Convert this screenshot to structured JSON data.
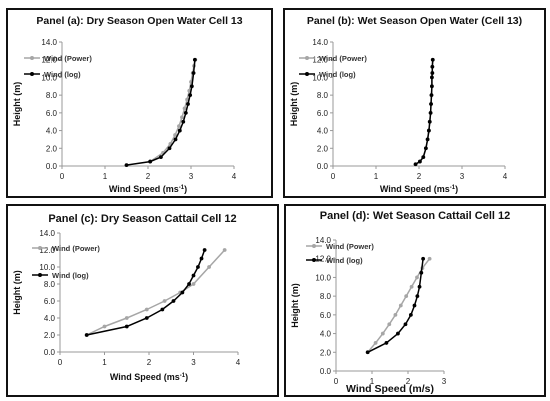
{
  "chart_data": [
    {
      "type": "line",
      "title": "Panel (a): Dry Season Open Water Cell 13",
      "xlabel": "Wind Speed (ms",
      "xlabel_sup": "-1",
      "xlabel_end": ")",
      "ylabel": "Height (m)",
      "xlim": [
        0,
        4
      ],
      "ylim": [
        0,
        14
      ],
      "x_ticks": [
        "0",
        "1",
        "2",
        "3",
        "4"
      ],
      "y_ticks": [
        "0.0",
        "2.0",
        "4.0",
        "6.0",
        "8.0",
        "10.0",
        "12.0",
        "14.0"
      ],
      "grid": false,
      "legend": "top-left",
      "series": [
        {
          "name": "Wind (Power)",
          "color": "#a6a6a6",
          "x": [
            2.05,
            2.35,
            2.52,
            2.63,
            2.72,
            2.79,
            2.85,
            2.91,
            2.96,
            3.0,
            3.04,
            3.07,
            3.1
          ],
          "y": [
            0.5,
            1.5,
            2.5,
            3.5,
            4.5,
            5.5,
            6.5,
            7.5,
            8.5,
            9.5,
            10.5,
            11.3,
            12.0
          ]
        },
        {
          "name": "Wind (log)",
          "color": "#000000",
          "x": [
            1.5,
            2.05,
            2.3,
            2.5,
            2.64,
            2.74,
            2.82,
            2.88,
            2.93,
            2.98,
            3.02,
            3.06,
            3.09
          ],
          "y": [
            0.1,
            0.5,
            1.0,
            2.0,
            3.0,
            4.0,
            5.0,
            6.0,
            7.0,
            8.0,
            9.0,
            10.5,
            12.0
          ]
        }
      ]
    },
    {
      "type": "line",
      "title": "Panel (b): Wet Season Open Water (Cell 13)",
      "xlabel": "Wind Speed (ms",
      "xlabel_sup": "-1",
      "xlabel_end": ")",
      "ylabel": "Height (m)",
      "xlim": [
        0,
        4
      ],
      "ylim": [
        0,
        14
      ],
      "x_ticks": [
        "0",
        "1",
        "2",
        "3",
        "4"
      ],
      "y_ticks": [
        "0.0",
        "2.0",
        "4.0",
        "6.0",
        "8.0",
        "10.0",
        "12.0",
        "14.0"
      ],
      "grid": false,
      "legend": "top-left",
      "series": [
        {
          "name": "Wind (Power)",
          "color": "#a6a6a6",
          "x": [
            1.92,
            2.02,
            2.1,
            2.16,
            2.2,
            2.23,
            2.25,
            2.27,
            2.28,
            2.29,
            2.3,
            2.3,
            2.31,
            2.31,
            2.32
          ],
          "y": [
            0.2,
            0.5,
            1.0,
            2.0,
            3.0,
            4.0,
            5.0,
            6.0,
            7.0,
            8.0,
            9.0,
            10.0,
            10.5,
            11.2,
            12.0
          ]
        },
        {
          "name": "Wind (log)",
          "color": "#000000",
          "x": [
            1.92,
            2.02,
            2.1,
            2.16,
            2.2,
            2.23,
            2.25,
            2.27,
            2.28,
            2.29,
            2.3,
            2.3,
            2.31,
            2.31,
            2.32
          ],
          "y": [
            0.2,
            0.5,
            1.0,
            2.0,
            3.0,
            4.0,
            5.0,
            6.0,
            7.0,
            8.0,
            9.0,
            10.0,
            10.5,
            11.2,
            12.0
          ]
        }
      ]
    },
    {
      "type": "line",
      "title": "Panel (c): Dry Season Cattail Cell 12",
      "xlabel": "Wind Speed (ms",
      "xlabel_sup": "-1",
      "xlabel_end": ")",
      "ylabel": "Height (m)",
      "xlim": [
        0,
        4
      ],
      "ylim": [
        0,
        14
      ],
      "x_ticks": [
        "0",
        "1",
        "2",
        "3",
        "4"
      ],
      "y_ticks": [
        "0.0",
        "2.0",
        "4.0",
        "6.0",
        "8.0",
        "10.0",
        "12.0",
        "14.0"
      ],
      "grid": false,
      "legend": "top-left",
      "series": [
        {
          "name": "Wind (Power)",
          "color": "#a6a6a6",
          "x": [
            0.6,
            1.0,
            1.5,
            1.95,
            2.35,
            2.7,
            3.0,
            3.35,
            3.7
          ],
          "y": [
            2.0,
            3.0,
            4.0,
            5.0,
            6.0,
            7.0,
            8.0,
            10.0,
            12.0
          ]
        },
        {
          "name": "Wind (log)",
          "color": "#000000",
          "x": [
            0.6,
            1.5,
            1.95,
            2.3,
            2.55,
            2.75,
            2.9,
            3.0,
            3.1,
            3.18,
            3.25
          ],
          "y": [
            2.0,
            3.0,
            4.0,
            5.0,
            6.0,
            7.0,
            8.0,
            9.0,
            10.0,
            11.0,
            12.0
          ]
        }
      ]
    },
    {
      "type": "line",
      "title": "Panel (d): Wet Season Cattail Cell 12",
      "xlabel": "Wind Speed (m/s)",
      "xlabel_sup": "",
      "xlabel_end": "",
      "ylabel": "Height (m)",
      "xlim": [
        0,
        3
      ],
      "ylim": [
        0,
        14
      ],
      "x_ticks": [
        "0",
        "1",
        "2",
        "3"
      ],
      "y_ticks": [
        "0.0",
        "2.0",
        "4.0",
        "6.0",
        "8.0",
        "10.0",
        "12.0",
        "14.0"
      ],
      "grid": false,
      "legend": "top-left",
      "series": [
        {
          "name": "Wind (Power)",
          "color": "#a6a6a6",
          "x": [
            0.88,
            1.1,
            1.3,
            1.48,
            1.65,
            1.8,
            1.95,
            2.1,
            2.25,
            2.4,
            2.6
          ],
          "y": [
            2.0,
            3.0,
            4.0,
            5.0,
            6.0,
            7.0,
            8.0,
            9.0,
            10.0,
            11.0,
            12.0
          ]
        },
        {
          "name": "Wind (log)",
          "color": "#000000",
          "x": [
            0.88,
            1.4,
            1.72,
            1.93,
            2.08,
            2.18,
            2.26,
            2.32,
            2.37,
            2.42
          ],
          "y": [
            2.0,
            3.0,
            4.0,
            5.0,
            6.0,
            7.0,
            8.0,
            9.0,
            10.5,
            12.0
          ]
        }
      ]
    }
  ]
}
